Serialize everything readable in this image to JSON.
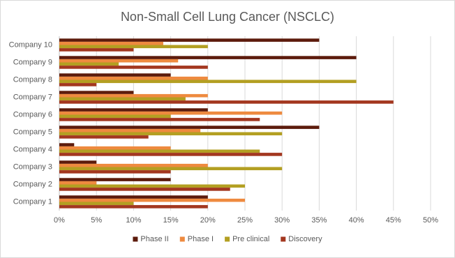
{
  "chart_data": {
    "type": "hbar",
    "title": "Non-Small Cell Lung Cancer (NSCLC)",
    "categories": [
      "Company 1",
      "Company 2",
      "Company 3",
      "Company 4",
      "Company 5",
      "Company 6",
      "Company 7",
      "Company 8",
      "Company 9",
      "Company 10"
    ],
    "series": [
      {
        "name": "Phase II",
        "color": "#5c1b0c",
        "values": [
          20,
          15,
          5,
          2,
          35,
          20,
          10,
          15,
          40,
          35
        ]
      },
      {
        "name": "Phase I",
        "color": "#ee8a3f",
        "values": [
          25,
          5,
          20,
          15,
          19,
          30,
          20,
          20,
          16,
          14
        ]
      },
      {
        "name": "Pre clinical",
        "color": "#b39f22",
        "values": [
          10,
          25,
          30,
          27,
          30,
          15,
          17,
          40,
          8,
          20
        ]
      },
      {
        "name": "Discovery",
        "color": "#a3371f",
        "values": [
          20,
          23,
          15,
          30,
          12,
          27,
          45,
          5,
          20,
          10
        ]
      }
    ],
    "xlim": [
      0,
      50
    ],
    "xticks": [
      {
        "value": 0,
        "label": "0%"
      },
      {
        "value": 5,
        "label": "5%"
      },
      {
        "value": 10,
        "label": "10%"
      },
      {
        "value": 15,
        "label": "15%"
      },
      {
        "value": 20,
        "label": "20%"
      },
      {
        "value": 25,
        "label": "25%"
      },
      {
        "value": 30,
        "label": "30%"
      },
      {
        "value": 35,
        "label": "35%"
      },
      {
        "value": 40,
        "label": "40%"
      },
      {
        "value": 45,
        "label": "45%"
      },
      {
        "value": 50,
        "label": "50%"
      }
    ],
    "grid": true,
    "legend": "bottom"
  }
}
